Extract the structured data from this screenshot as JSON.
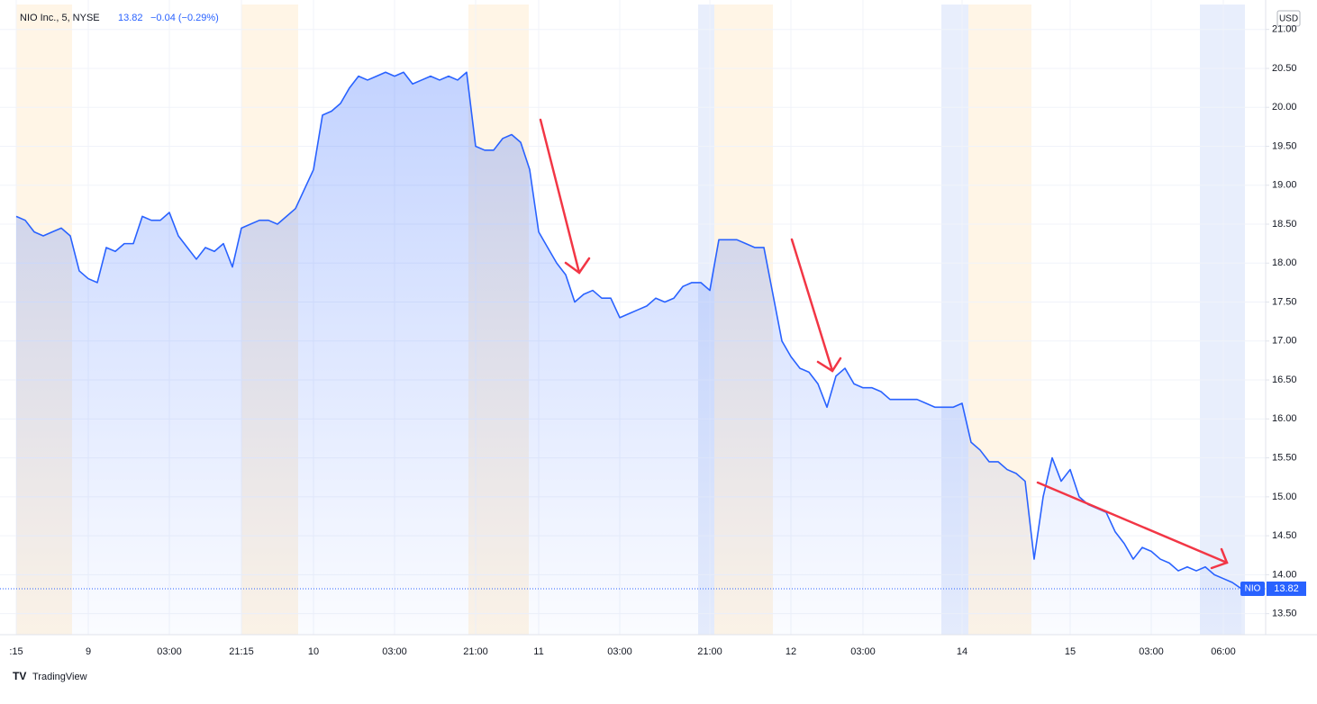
{
  "chart_data": {
    "type": "line",
    "symbol_title": "NIO Inc., 5, NYSE",
    "price_label": "13.82",
    "change_label": "−0.04 (−0.29%)",
    "symbol": "NIO",
    "currency": "USD",
    "branding": "TradingView",
    "categories": [
      ":15",
      null,
      null,
      null,
      null,
      null,
      null,
      null,
      "9",
      null,
      null,
      null,
      null,
      null,
      null,
      null,
      null,
      "03:00",
      null,
      null,
      null,
      null,
      null,
      null,
      null,
      "21:15",
      null,
      null,
      null,
      null,
      null,
      null,
      null,
      "10",
      null,
      null,
      null,
      null,
      null,
      null,
      null,
      null,
      "03:00",
      null,
      null,
      null,
      null,
      null,
      null,
      null,
      null,
      "21:00",
      null,
      null,
      null,
      null,
      null,
      null,
      "11",
      null,
      null,
      null,
      null,
      null,
      null,
      null,
      null,
      "03:00",
      null,
      null,
      null,
      null,
      null,
      null,
      null,
      null,
      null,
      "21:00",
      null,
      null,
      null,
      null,
      null,
      null,
      null,
      null,
      "12",
      null,
      null,
      null,
      null,
      null,
      null,
      null,
      "03:00",
      null,
      null,
      null,
      null,
      null,
      null,
      null,
      null,
      null,
      null,
      "14",
      null,
      null,
      null,
      null,
      null,
      null,
      null,
      null,
      null,
      null,
      null,
      "15",
      null,
      null,
      null,
      null,
      null,
      null,
      null,
      null,
      "03:00",
      null,
      null,
      null,
      null,
      null,
      null,
      null,
      "06:00",
      null,
      null
    ],
    "series": [
      {
        "name": "NIO",
        "color": "#2962ff",
        "values": [
          18.6,
          18.55,
          18.4,
          18.35,
          18.4,
          18.45,
          18.35,
          17.9,
          17.8,
          17.75,
          18.2,
          18.15,
          18.25,
          18.25,
          18.6,
          18.55,
          18.55,
          18.65,
          18.35,
          18.2,
          18.05,
          18.2,
          18.15,
          18.25,
          17.95,
          18.45,
          18.5,
          18.55,
          18.55,
          18.5,
          18.6,
          18.7,
          18.95,
          19.2,
          19.9,
          19.95,
          20.05,
          20.25,
          20.4,
          20.35,
          20.4,
          20.45,
          20.4,
          20.45,
          20.3,
          20.35,
          20.4,
          20.35,
          20.4,
          20.35,
          20.45,
          19.5,
          19.45,
          19.45,
          19.6,
          19.65,
          19.55,
          19.2,
          18.4,
          18.2,
          18.0,
          17.85,
          17.5,
          17.6,
          17.65,
          17.55,
          17.55,
          17.3,
          17.35,
          17.4,
          17.45,
          17.55,
          17.5,
          17.55,
          17.7,
          17.75,
          17.75,
          17.65,
          18.3,
          18.3,
          18.3,
          18.25,
          18.2,
          18.2,
          17.6,
          17.0,
          16.8,
          16.65,
          16.6,
          16.45,
          16.15,
          16.55,
          16.65,
          16.45,
          16.4,
          16.4,
          16.35,
          16.25,
          16.25,
          16.25,
          16.25,
          16.2,
          16.15,
          16.15,
          16.15,
          16.2,
          15.7,
          15.6,
          15.45,
          15.45,
          15.35,
          15.3,
          15.2,
          14.2,
          15.0,
          15.5,
          15.2,
          15.35,
          15.0,
          14.9,
          14.85,
          14.8,
          14.55,
          14.4,
          14.2,
          14.35,
          14.3,
          14.2,
          14.15,
          14.05,
          14.1,
          14.05,
          14.1,
          14.0,
          13.95,
          13.9,
          13.82
        ]
      }
    ],
    "ylim": [
      13.23,
      21.32
    ],
    "yticks": [
      {
        "value": 13.5,
        "label": "13.50"
      },
      {
        "value": 14,
        "label": "14.00"
      },
      {
        "value": 14.5,
        "label": "14.50"
      },
      {
        "value": 15,
        "label": "15.00"
      },
      {
        "value": 15.5,
        "label": "15.50"
      },
      {
        "value": 16,
        "label": "16.00"
      },
      {
        "value": 16.5,
        "label": "16.50"
      },
      {
        "value": 17,
        "label": "17.00"
      },
      {
        "value": 17.5,
        "label": "17.50"
      },
      {
        "value": 18,
        "label": "18.00"
      },
      {
        "value": 18.5,
        "label": "18.50"
      },
      {
        "value": 19,
        "label": "19.00"
      },
      {
        "value": 19.5,
        "label": "19.50"
      },
      {
        "value": 20,
        "label": "20.00"
      },
      {
        "value": 20.5,
        "label": "20.50"
      },
      {
        "value": 21,
        "label": "21.00"
      }
    ],
    "grid": true
  }
}
